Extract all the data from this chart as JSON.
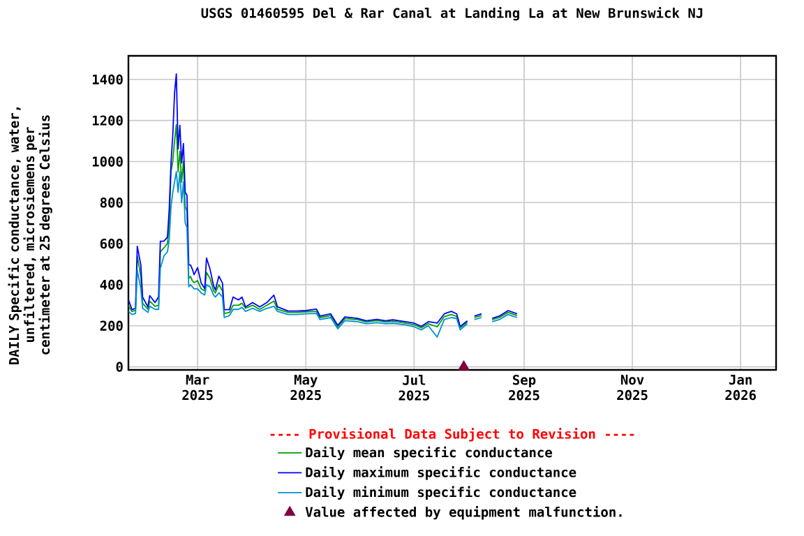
{
  "chart_data": {
    "type": "line",
    "title": "USGS 01460595 Del & Rar Canal at Landing La at New Brunswick NJ",
    "ylabel": "DAILY Specific conductance, water, unfiltered, microsiemens per centimeter at 25 degrees Celsius",
    "annotations": [
      "---- Provisional Data Subject to Revision ----"
    ],
    "x": [
      "2025-01-21",
      "2025-01-23",
      "2025-01-25",
      "2025-01-26",
      "2025-01-28",
      "2025-01-29",
      "2025-02-01",
      "2025-02-02",
      "2025-02-05",
      "2025-02-07",
      "2025-02-08",
      "2025-02-10",
      "2025-02-12",
      "2025-02-13",
      "2025-02-14",
      "2025-02-15",
      "2025-02-16",
      "2025-02-17",
      "2025-02-18",
      "2025-02-19",
      "2025-02-20",
      "2025-02-21",
      "2025-02-22",
      "2025-02-23",
      "2025-02-24",
      "2025-02-25",
      "2025-02-26",
      "2025-02-27",
      "2025-03-01",
      "2025-03-03",
      "2025-03-05",
      "2025-03-06",
      "2025-03-08",
      "2025-03-10",
      "2025-03-11",
      "2025-03-13",
      "2025-03-15",
      "2025-03-16",
      "2025-03-19",
      "2025-03-21",
      "2025-03-24",
      "2025-03-26",
      "2025-03-28",
      "2025-04-01",
      "2025-04-05",
      "2025-04-09",
      "2025-04-13",
      "2025-04-15",
      "2025-04-21",
      "2025-04-26",
      "2025-05-01",
      "2025-05-07",
      "2025-05-09",
      "2025-05-15",
      "2025-05-19",
      "2025-05-23",
      "2025-05-30",
      "2025-06-04",
      "2025-06-10",
      "2025-06-15",
      "2025-06-19",
      "2025-06-26",
      "2025-07-01",
      "2025-07-05",
      "2025-07-09",
      "2025-07-14",
      "2025-07-18",
      "2025-07-22",
      "2025-07-25",
      "2025-07-27",
      "2025-07-31",
      "2025-08-02",
      "2025-08-04",
      "2025-08-08",
      "2025-08-11",
      "2025-08-14",
      "2025-08-18",
      "2025-08-23",
      "2025-08-28"
    ],
    "series": [
      {
        "name": "Daily mean specific conductance",
        "color": "#00a000",
        "values": [
          300,
          270,
          275,
          540,
          440,
          310,
          280,
          320,
          295,
          300,
          560,
          580,
          600,
          700,
          950,
          1000,
          1100,
          1180,
          950,
          1050,
          900,
          1000,
          780,
          760,
          430,
          440,
          420,
          410,
          420,
          380,
          370,
          460,
          430,
          370,
          360,
          400,
          370,
          260,
          265,
          300,
          300,
          310,
          285,
          300,
          280,
          300,
          320,
          280,
          265,
          265,
          268,
          270,
          240,
          250,
          195,
          235,
          230,
          218,
          225,
          218,
          222,
          213,
          205,
          190,
          210,
          195,
          245,
          255,
          245,
          190,
          218,
          null,
          240,
          250,
          null,
          230,
          240,
          265,
          250
        ]
      },
      {
        "name": "Daily maximum specific conductance",
        "color": "#0000ff",
        "values": [
          327,
          279,
          285,
          587,
          496,
          340,
          292,
          347,
          313,
          340,
          612,
          612,
          632,
          768,
          993,
          1129,
          1333,
          1427,
          1061,
          1176,
          993,
          1088,
          850,
          836,
          496,
          496,
          476,
          449,
          483,
          408,
          381,
          530,
          476,
          394,
          374,
          442,
          408,
          279,
          279,
          340,
          326,
          340,
          292,
          313,
          292,
          313,
          349,
          292,
          272,
          272,
          274,
          281,
          247,
          258,
          202,
          243,
          236,
          224,
          231,
          224,
          229,
          220,
          213,
          197,
          220,
          213,
          258,
          270,
          258,
          197,
          224,
          null,
          247,
          258,
          null,
          236,
          247,
          274,
          258
        ]
      },
      {
        "name": "Daily minimum specific conductance",
        "color": "#0090d0",
        "values": [
          270,
          255,
          260,
          470,
          380,
          285,
          265,
          295,
          280,
          280,
          480,
          540,
          560,
          620,
          780,
          850,
          900,
          950,
          850,
          950,
          800,
          900,
          700,
          680,
          390,
          400,
          390,
          380,
          380,
          360,
          350,
          400,
          390,
          350,
          340,
          360,
          340,
          240,
          250,
          280,
          280,
          290,
          270,
          285,
          270,
          285,
          295,
          270,
          255,
          255,
          258,
          260,
          230,
          240,
          185,
          225,
          220,
          210,
          215,
          210,
          212,
          205,
          195,
          180,
          200,
          145,
          230,
          240,
          235,
          180,
          210,
          null,
          230,
          240,
          null,
          220,
          230,
          255,
          240
        ]
      },
      {
        "name": "Value affected by equipment malfunction.",
        "type": "scatter",
        "marker": "triangle",
        "color": "#800040",
        "x": [
          "2025-07-29"
        ],
        "values": [
          0
        ]
      }
    ],
    "xlim": [
      "2025-01-21",
      "2026-01-21"
    ],
    "xticks": [
      {
        "value": "2025-03-01",
        "label": "Mar 2025"
      },
      {
        "value": "2025-05-01",
        "label": "May 2025"
      },
      {
        "value": "2025-07-01",
        "label": "Jul 2025"
      },
      {
        "value": "2025-09-01",
        "label": "Sep 2025"
      },
      {
        "value": "2025-11-01",
        "label": "Nov 2025"
      },
      {
        "value": "2026-01-01",
        "label": "Jan 2026"
      }
    ],
    "ylim": [
      -15,
      1515
    ],
    "yticks": [
      0,
      200,
      400,
      600,
      800,
      1000,
      1200,
      1400
    ],
    "grid": true,
    "legend": "bottom",
    "marker": "none",
    "line_style": "solid"
  }
}
